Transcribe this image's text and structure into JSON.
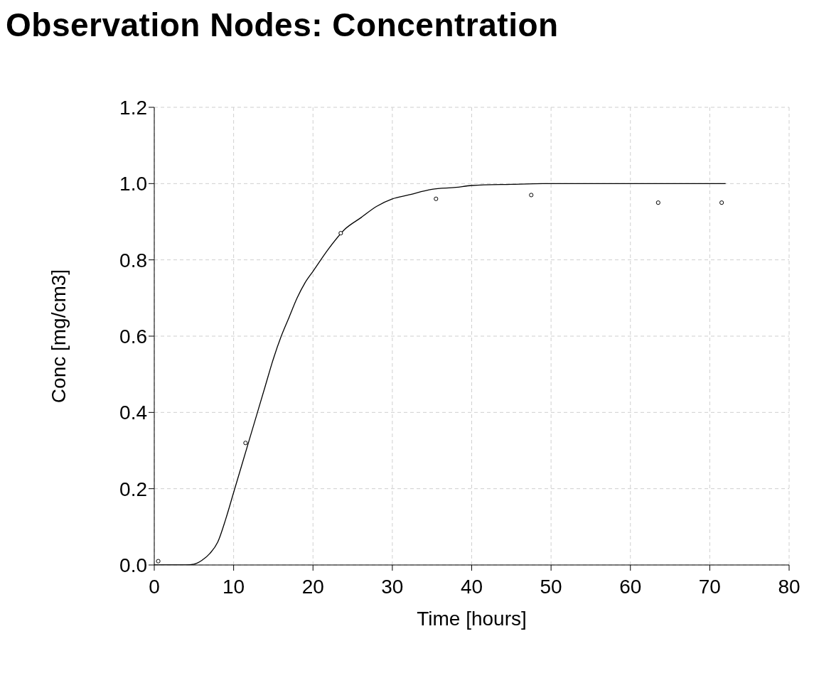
{
  "chart_data": {
    "type": "scatter",
    "title": "Observation Nodes: Concentration",
    "xlabel": "Time [hours]",
    "ylabel": "Conc [mg/cm3]",
    "xlim": [
      0,
      80
    ],
    "xticks": [
      0,
      10,
      20,
      30,
      40,
      50,
      60,
      70,
      80
    ],
    "ylim": [
      0,
      1.2
    ],
    "yticks": [
      {
        "value": 0,
        "label": "0.0"
      },
      {
        "value": 0.2,
        "label": "0.2"
      },
      {
        "value": 0.4,
        "label": "0.4"
      },
      {
        "value": 0.6,
        "label": "0.6"
      },
      {
        "value": 0.8,
        "label": "0.8"
      },
      {
        "value": 1,
        "label": "1.0"
      },
      {
        "value": 1.2,
        "label": "1.2"
      }
    ],
    "grid": true,
    "legend": false,
    "series": [
      {
        "marker": "circle",
        "color": "#000000",
        "x": [
          0.5,
          11.5,
          23.5,
          35.5,
          47.5,
          63.5,
          71.5
        ],
        "values": [
          0.01,
          0.32,
          0.87,
          0.96,
          0.97,
          0.95,
          0.95
        ]
      },
      {
        "type": "line",
        "marker": "none",
        "line_style": "solid",
        "color": "#000000",
        "x": [
          0,
          2,
          4,
          5,
          6,
          7,
          8,
          9,
          10,
          11,
          12,
          13,
          14,
          15,
          16,
          17,
          18,
          19,
          20,
          22,
          24,
          26,
          28,
          30,
          32,
          35,
          38,
          40,
          45,
          50,
          60,
          72
        ],
        "values": [
          0,
          0,
          0,
          0.002,
          0.012,
          0.03,
          0.06,
          0.12,
          0.19,
          0.26,
          0.33,
          0.4,
          0.47,
          0.54,
          0.6,
          0.65,
          0.7,
          0.74,
          0.77,
          0.83,
          0.88,
          0.91,
          0.94,
          0.96,
          0.97,
          0.985,
          0.99,
          0.995,
          0.998,
          1,
          1,
          1
        ]
      }
    ]
  }
}
